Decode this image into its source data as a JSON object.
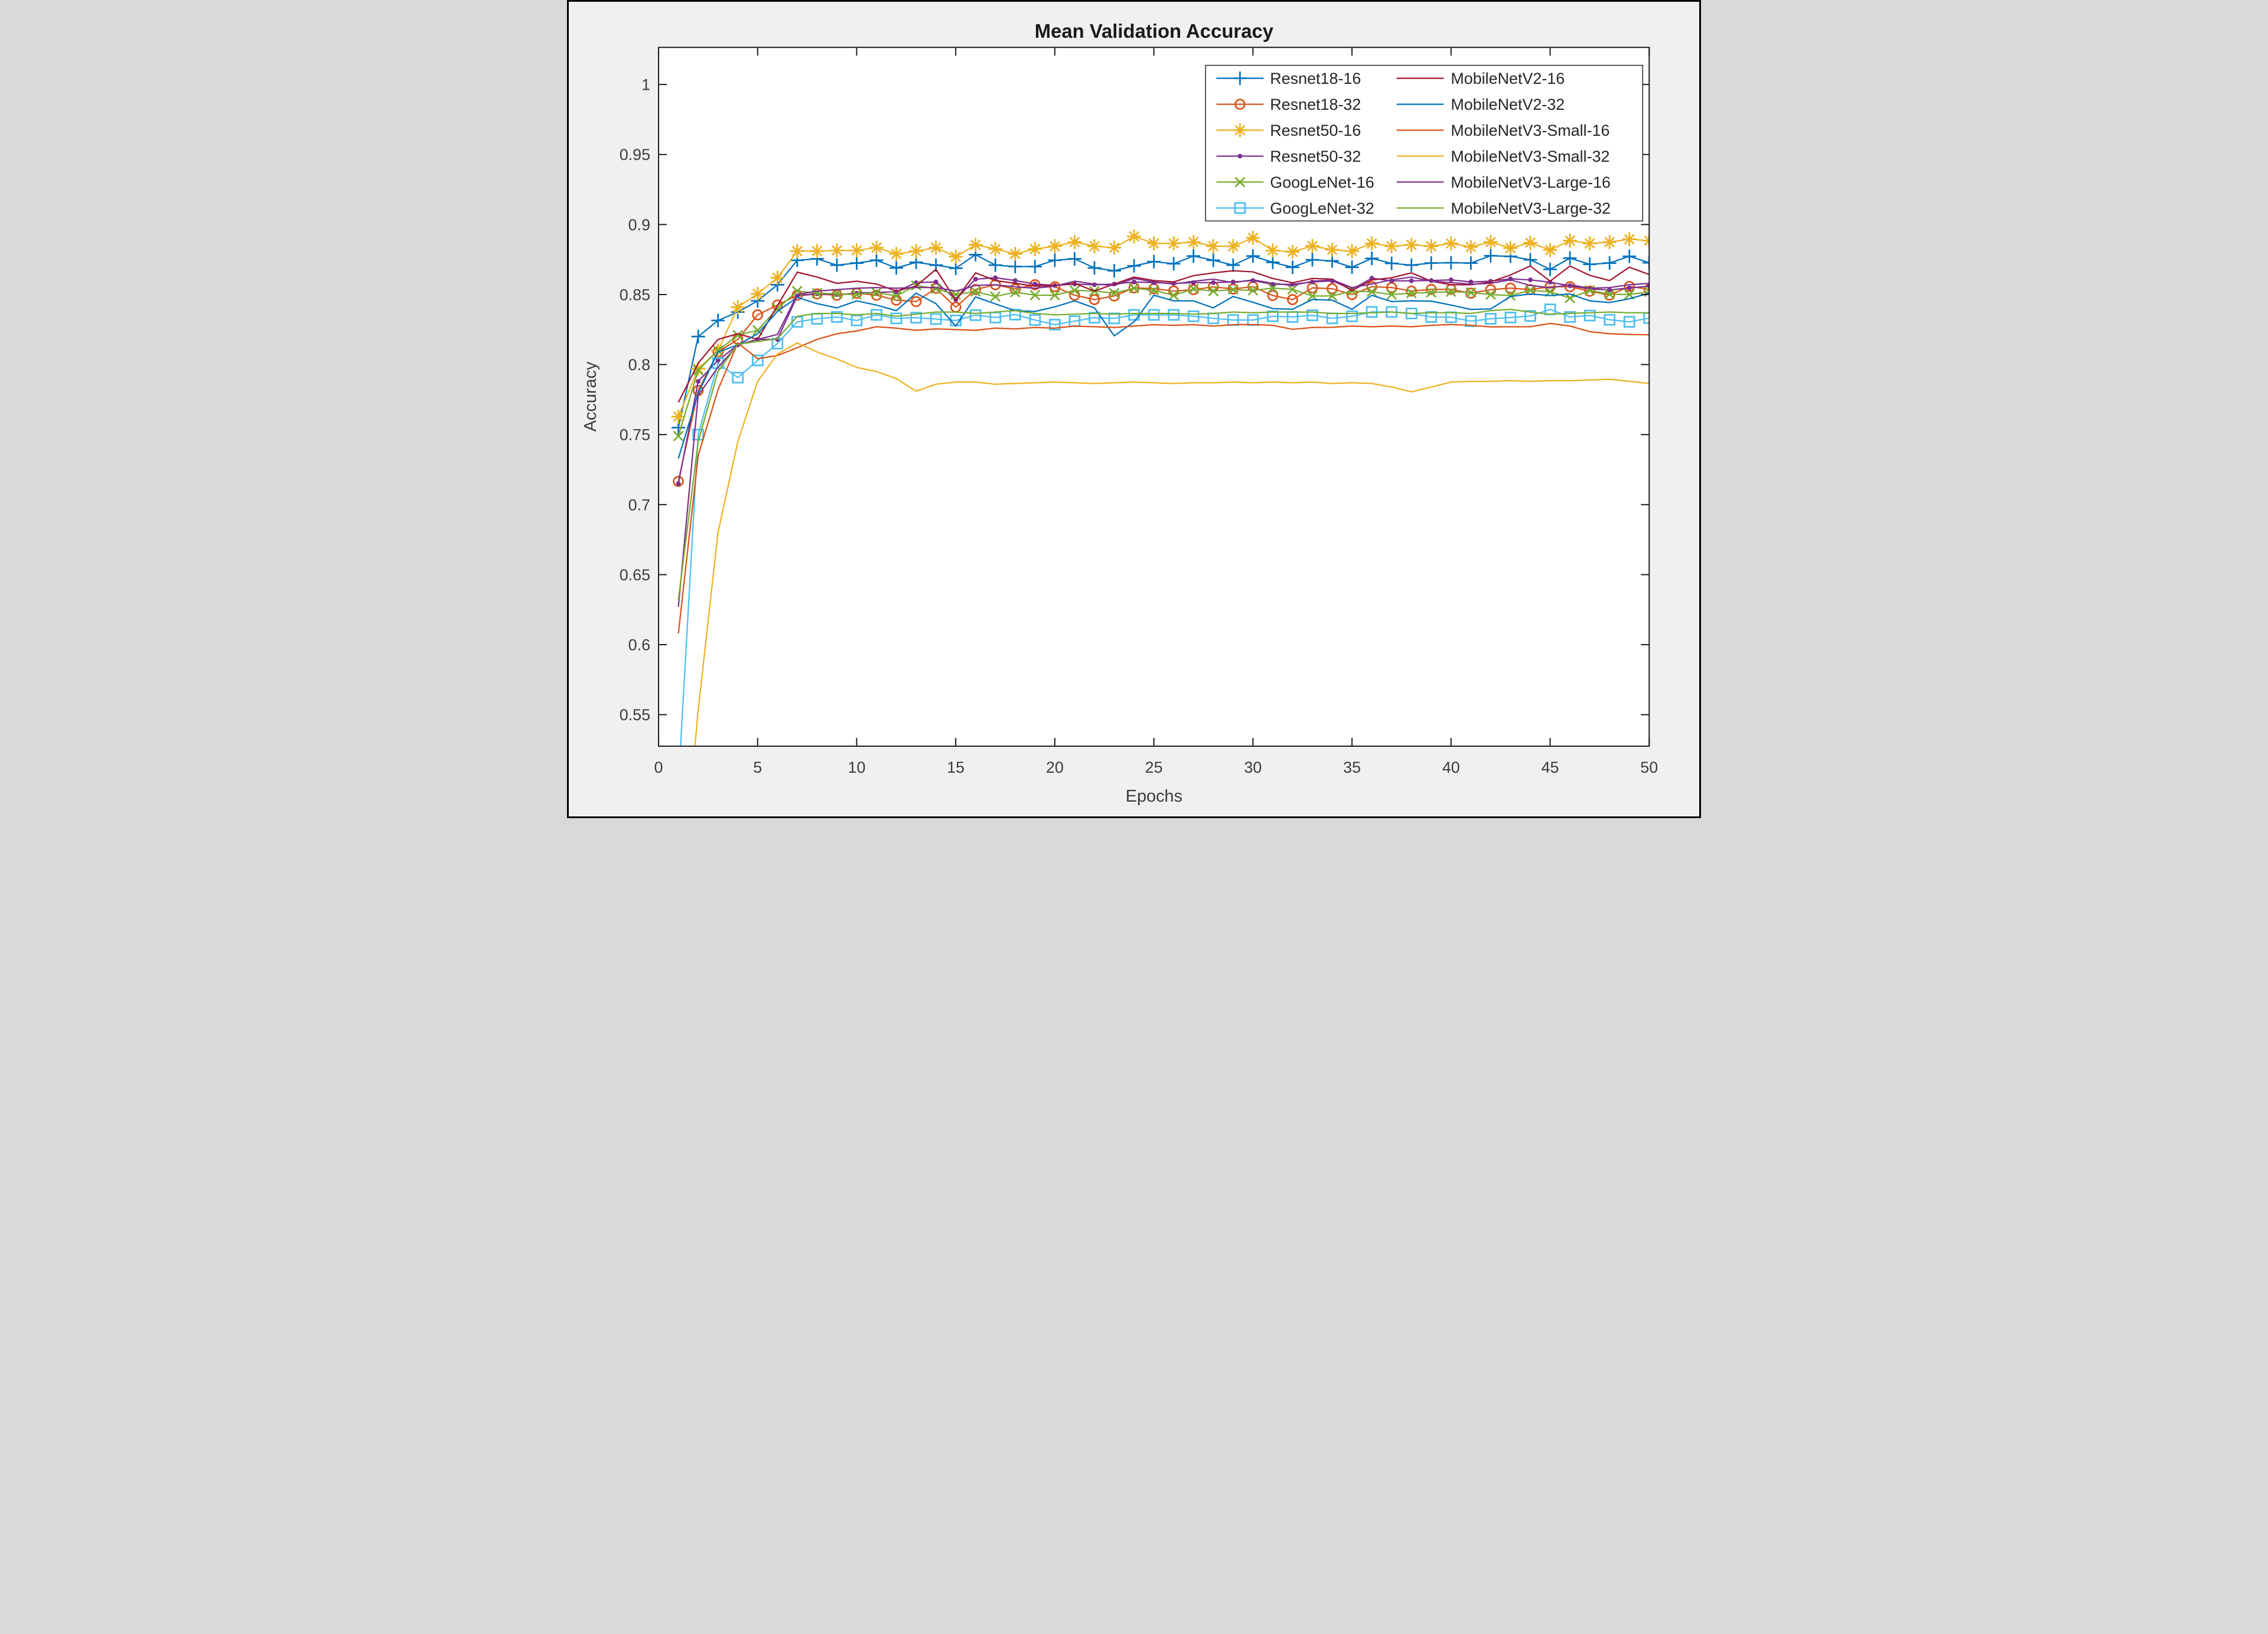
{
  "chart_data": {
    "type": "line",
    "title": "Mean Validation Accuracy",
    "xlabel": "Epochs",
    "ylabel": "Accuracy",
    "xlim": [
      0,
      50
    ],
    "ylim": [
      0.5275,
      1.0265
    ],
    "xticks": [
      0,
      5,
      10,
      15,
      20,
      25,
      30,
      35,
      40,
      45,
      50
    ],
    "yticks": [
      0.55,
      0.6,
      0.65,
      0.7,
      0.75,
      0.8,
      0.85,
      0.9,
      0.95,
      1
    ],
    "ytick_labels": [
      "0.55",
      "0.6",
      "0.65",
      "0.7",
      "0.75",
      "0.8",
      "0.85",
      "0.9",
      "0.95",
      "1"
    ],
    "grid": false,
    "legend_position": "top-right",
    "legend_columns": 2,
    "x": [
      1,
      2,
      3,
      4,
      5,
      6,
      7,
      8,
      9,
      10,
      11,
      12,
      13,
      14,
      15,
      16,
      17,
      18,
      19,
      20,
      21,
      22,
      23,
      24,
      25,
      26,
      27,
      28,
      29,
      30,
      31,
      32,
      33,
      34,
      35,
      36,
      37,
      38,
      39,
      40,
      41,
      42,
      43,
      44,
      45,
      46,
      47,
      48,
      49,
      50
    ],
    "series": [
      {
        "name": "Resnet18-16",
        "color": "#0072BD",
        "marker": "plus",
        "values": [
          0.755,
          0.82,
          0.8315,
          0.8375,
          0.8455,
          0.857,
          0.8745,
          0.8755,
          0.871,
          0.8725,
          0.8745,
          0.869,
          0.873,
          0.871,
          0.8688,
          0.8785,
          0.871,
          0.87,
          0.87,
          0.8745,
          0.8755,
          0.869,
          0.867,
          0.8705,
          0.8735,
          0.872,
          0.8775,
          0.8745,
          0.871,
          0.8775,
          0.873,
          0.8695,
          0.8748,
          0.874,
          0.8695,
          0.8758,
          0.8723,
          0.871,
          0.8725,
          0.8727,
          0.8725,
          0.8777,
          0.8773,
          0.8748,
          0.868,
          0.876,
          0.8716,
          0.8725,
          0.8773,
          0.8727
        ]
      },
      {
        "name": "Resnet18-32",
        "color": "#D95319",
        "marker": "circle",
        "values": [
          0.7166,
          0.7815,
          0.809,
          0.818,
          0.8355,
          0.8425,
          0.8495,
          0.8505,
          0.8495,
          0.851,
          0.8495,
          0.846,
          0.845,
          0.8545,
          0.841,
          0.8536,
          0.857,
          0.854,
          0.857,
          0.8556,
          0.8495,
          0.8464,
          0.849,
          0.8548,
          0.8542,
          0.8525,
          0.8535,
          0.8555,
          0.854,
          0.8556,
          0.8493,
          0.8464,
          0.8548,
          0.8542,
          0.85,
          0.8556,
          0.855,
          0.8525,
          0.8537,
          0.8537,
          0.851,
          0.8535,
          0.8546,
          0.8535,
          0.8556,
          0.8556,
          0.8524,
          0.8496,
          0.8558,
          0.8537
        ]
      },
      {
        "name": "Resnet50-16",
        "color": "#EDB120",
        "marker": "asterisk",
        "values": [
          0.7628,
          0.797,
          0.81,
          0.841,
          0.8505,
          0.862,
          0.881,
          0.881,
          0.8815,
          0.8815,
          0.8835,
          0.879,
          0.881,
          0.8835,
          0.877,
          0.8855,
          0.8825,
          0.879,
          0.8825,
          0.8845,
          0.8875,
          0.8845,
          0.8835,
          0.8915,
          0.8865,
          0.8865,
          0.8875,
          0.8845,
          0.8845,
          0.8905,
          0.8815,
          0.8805,
          0.8847,
          0.882,
          0.881,
          0.8865,
          0.8845,
          0.8855,
          0.8845,
          0.8865,
          0.884,
          0.8875,
          0.8832,
          0.887,
          0.8818,
          0.8885,
          0.8865,
          0.8875,
          0.8895,
          0.8885
        ]
      },
      {
        "name": "Resnet50-32",
        "color": "#7E2F8E",
        "marker": "point",
        "values": [
          0.715,
          0.788,
          0.803,
          0.814,
          0.818,
          0.818,
          0.849,
          0.8505,
          0.85,
          0.851,
          0.8515,
          0.852,
          0.8585,
          0.859,
          0.8465,
          0.861,
          0.862,
          0.86,
          0.8575,
          0.8565,
          0.8575,
          0.857,
          0.8575,
          0.859,
          0.8585,
          0.858,
          0.8585,
          0.8585,
          0.859,
          0.86,
          0.8573,
          0.8573,
          0.859,
          0.8598,
          0.8537,
          0.8617,
          0.8598,
          0.8598,
          0.86,
          0.8605,
          0.859,
          0.8595,
          0.8612,
          0.8605,
          0.8588,
          0.8563,
          0.854,
          0.8533,
          0.8547,
          0.856
        ]
      },
      {
        "name": "GoogLeNet-16",
        "color": "#77AC30",
        "marker": "x",
        "values": [
          0.749,
          0.796,
          0.81,
          0.821,
          0.8245,
          0.84,
          0.8525,
          0.851,
          0.8505,
          0.85,
          0.8515,
          0.849,
          0.8565,
          0.8542,
          0.85,
          0.8521,
          0.8486,
          0.8517,
          0.8496,
          0.8495,
          0.853,
          0.8525,
          0.851,
          0.8545,
          0.853,
          0.8495,
          0.854,
          0.8525,
          0.8535,
          0.853,
          0.8546,
          0.8537,
          0.849,
          0.849,
          0.8525,
          0.852,
          0.85,
          0.851,
          0.8515,
          0.852,
          0.8515,
          0.85,
          0.8493,
          0.853,
          0.852,
          0.8475,
          0.853,
          0.8503,
          0.85,
          0.852
        ]
      },
      {
        "name": "GoogLeNet-32",
        "color": "#4DBEEE",
        "marker": "square",
        "values": [
          0.5,
          0.75,
          0.801,
          0.7907,
          0.803,
          0.815,
          0.8305,
          0.8327,
          0.834,
          0.8315,
          0.8355,
          0.833,
          0.8335,
          0.8325,
          0.8315,
          0.8353,
          0.8336,
          0.8357,
          0.8318,
          0.8285,
          0.831,
          0.8335,
          0.833,
          0.8355,
          0.8355,
          0.8355,
          0.8345,
          0.833,
          0.8318,
          0.8318,
          0.8345,
          0.834,
          0.8352,
          0.833,
          0.8345,
          0.8376,
          0.8376,
          0.8365,
          0.834,
          0.8338,
          0.831,
          0.8327,
          0.8336,
          0.8347,
          0.8394,
          0.834,
          0.835,
          0.832,
          0.8305,
          0.8332
        ]
      },
      {
        "name": "MobileNetV2-16",
        "color": "#A2142F",
        "marker": "none",
        "values": [
          0.773,
          0.801,
          0.818,
          0.822,
          0.818,
          0.842,
          0.866,
          0.8625,
          0.858,
          0.8595,
          0.8575,
          0.8525,
          0.856,
          0.868,
          0.846,
          0.8655,
          0.86,
          0.858,
          0.856,
          0.8565,
          0.858,
          0.8525,
          0.8575,
          0.8625,
          0.86,
          0.859,
          0.8635,
          0.8655,
          0.867,
          0.8662,
          0.8615,
          0.8584,
          0.8615,
          0.861,
          0.8528,
          0.8604,
          0.862,
          0.8655,
          0.8595,
          0.857,
          0.857,
          0.859,
          0.864,
          0.8704,
          0.8595,
          0.8704,
          0.8637,
          0.86,
          0.8695,
          0.8643
        ]
      },
      {
        "name": "MobileNetV2-32",
        "color": "#0072BD",
        "marker": "none",
        "values": [
          0.733,
          0.7795,
          0.809,
          0.814,
          0.822,
          0.838,
          0.848,
          0.8435,
          0.8405,
          0.8455,
          0.8425,
          0.8385,
          0.851,
          0.8435,
          0.8275,
          0.8483,
          0.8433,
          0.8385,
          0.8379,
          0.8412,
          0.8455,
          0.8405,
          0.8205,
          0.8305,
          0.8495,
          0.8455,
          0.8455,
          0.8405,
          0.8486,
          0.8445,
          0.84,
          0.8395,
          0.8465,
          0.846,
          0.8395,
          0.8495,
          0.845,
          0.8455,
          0.8453,
          0.8425,
          0.8394,
          0.8397,
          0.8486,
          0.8504,
          0.8493,
          0.8504,
          0.8455,
          0.8443,
          0.847,
          0.851
        ]
      },
      {
        "name": "MobileNetV3-Small-16",
        "color": "#D95319",
        "marker": "none",
        "values": [
          0.608,
          0.735,
          0.782,
          0.8155,
          0.8042,
          0.8065,
          0.812,
          0.818,
          0.822,
          0.824,
          0.827,
          0.826,
          0.8245,
          0.8255,
          0.825,
          0.8245,
          0.826,
          0.8255,
          0.8265,
          0.826,
          0.8275,
          0.827,
          0.8265,
          0.8275,
          0.8285,
          0.828,
          0.8285,
          0.8275,
          0.8285,
          0.8286,
          0.828,
          0.8252,
          0.8265,
          0.8266,
          0.8275,
          0.827,
          0.8275,
          0.827,
          0.828,
          0.8286,
          0.828,
          0.8269,
          0.827,
          0.827,
          0.8294,
          0.8275,
          0.8235,
          0.822,
          0.8215,
          0.8213
        ]
      },
      {
        "name": "MobileNetV3-Small-32",
        "color": "#EDB120",
        "marker": "none",
        "values": [
          0.4,
          0.553,
          0.68,
          0.745,
          0.788,
          0.8075,
          0.8155,
          0.809,
          0.804,
          0.798,
          0.795,
          0.79,
          0.781,
          0.786,
          0.7875,
          0.7875,
          0.786,
          0.7865,
          0.787,
          0.7875,
          0.787,
          0.7865,
          0.787,
          0.7875,
          0.787,
          0.7865,
          0.787,
          0.787,
          0.7875,
          0.787,
          0.7875,
          0.787,
          0.7875,
          0.7865,
          0.787,
          0.7865,
          0.784,
          0.7805,
          0.784,
          0.7875,
          0.788,
          0.788,
          0.7885,
          0.788,
          0.7885,
          0.7885,
          0.789,
          0.7895,
          0.788,
          0.7865
        ]
      },
      {
        "name": "MobileNetV3-Large-16",
        "color": "#7E2F8E",
        "marker": "none",
        "values": [
          0.627,
          0.778,
          0.798,
          0.814,
          0.818,
          0.8215,
          0.85,
          0.8525,
          0.8535,
          0.8545,
          0.855,
          0.8545,
          0.855,
          0.855,
          0.8525,
          0.8565,
          0.857,
          0.8555,
          0.8545,
          0.856,
          0.8595,
          0.8575,
          0.8565,
          0.8615,
          0.859,
          0.8575,
          0.8595,
          0.861,
          0.8585,
          0.8605,
          0.858,
          0.8565,
          0.8595,
          0.8605,
          0.855,
          0.8575,
          0.8605,
          0.8625,
          0.8595,
          0.8585,
          0.8575,
          0.858,
          0.8605,
          0.8565,
          0.8548,
          0.857,
          0.8545,
          0.855,
          0.857,
          0.858
        ]
      },
      {
        "name": "MobileNetV3-Large-32",
        "color": "#77AC30",
        "marker": "none",
        "values": [
          0.632,
          0.745,
          0.795,
          0.8145,
          0.8165,
          0.8185,
          0.8345,
          0.8365,
          0.8365,
          0.8355,
          0.8365,
          0.8345,
          0.836,
          0.8375,
          0.8375,
          0.8365,
          0.8375,
          0.8385,
          0.8365,
          0.8355,
          0.836,
          0.8365,
          0.836,
          0.8365,
          0.8365,
          0.8365,
          0.836,
          0.8365,
          0.8375,
          0.837,
          0.8375,
          0.8375,
          0.8375,
          0.8365,
          0.8365,
          0.837,
          0.8375,
          0.8365,
          0.837,
          0.837,
          0.8365,
          0.8385,
          0.8394,
          0.8375,
          0.836,
          0.8365,
          0.837,
          0.8375,
          0.837,
          0.837
        ]
      }
    ]
  },
  "colors": {
    "figure_bg": "#F0F0F0",
    "axes_bg": "#FFFFFF",
    "spine_color": "#1A1A1A",
    "legend_bg": "#FFFFFF",
    "legend_border": "#262626"
  }
}
